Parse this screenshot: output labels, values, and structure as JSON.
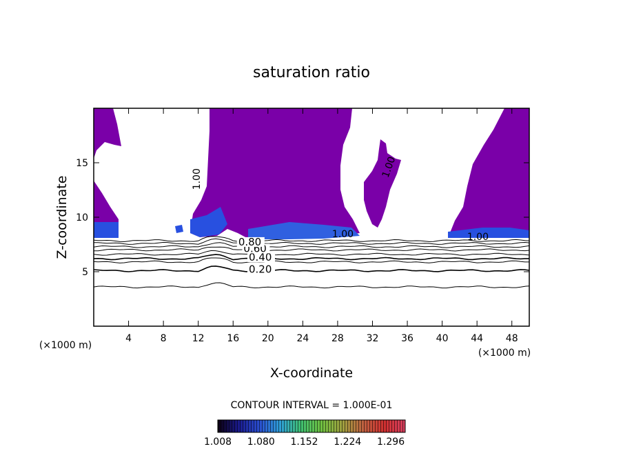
{
  "chart_data": {
    "type": "heatmap",
    "title": "saturation ratio",
    "xlabel": "X-coordinate",
    "ylabel": "Z-coordinate",
    "x_unit_left": "(×1000 m)",
    "x_unit_right": "(×1000 m)",
    "xlim": [
      0,
      50
    ],
    "ylim": [
      0,
      20
    ],
    "x_ticks": [
      4,
      8,
      12,
      16,
      20,
      24,
      28,
      32,
      36,
      40,
      44,
      48
    ],
    "y_ticks": [
      5,
      10,
      15
    ],
    "contour_interval_label": "CONTOUR INTERVAL = 1.000E-01",
    "colorbar": {
      "min": 1.008,
      "max": 1.32,
      "tick_values": [
        1.008,
        1.08,
        1.152,
        1.224,
        1.296
      ],
      "tick_labels": [
        "1.008",
        "1.080",
        "1.152",
        "1.224",
        "1.296"
      ],
      "colors": [
        "#0c0010",
        "#1a1a8c",
        "#2a4ed0",
        "#2fa0d8",
        "#40c070",
        "#70c040",
        "#a0a040",
        "#c06040",
        "#d03030",
        "#d84060"
      ]
    },
    "fill_color": "#7a00a8",
    "low_band_color": "#2850e0",
    "contours": [
      {
        "label": "0.20",
        "z": 5.1,
        "label_x": 17.8
      },
      {
        "label": "0.40",
        "z": 6.2,
        "label_x": 17.8
      },
      {
        "label": "0.60",
        "z": 7.0,
        "label_x": 17.2
      },
      {
        "label": "0.80",
        "z": 7.6,
        "label_x": 16.6
      }
    ],
    "contour_lines_z": [
      3.6,
      5.1,
      5.9,
      6.2,
      6.6,
      7.0,
      7.3,
      7.6,
      7.85
    ],
    "labels_1_00": [
      {
        "label": "1.00",
        "x": 12.2,
        "z": 13.5,
        "rotate": -90
      },
      {
        "label": "1.00",
        "x": 28.6,
        "z": 8.15,
        "rotate": 0
      },
      {
        "label": "1.00",
        "x": 34.2,
        "z": 14.5,
        "rotate": -70
      },
      {
        "label": "1.00",
        "x": 44.1,
        "z": 7.9,
        "rotate": 0
      }
    ]
  }
}
